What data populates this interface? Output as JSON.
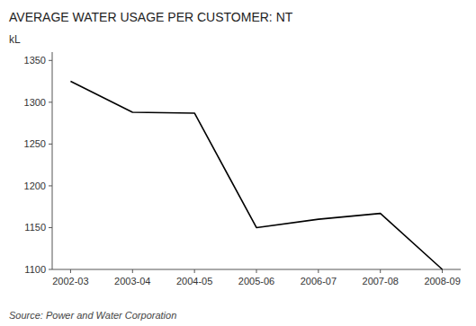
{
  "chart_data": {
    "type": "line",
    "title": "AVERAGE WATER USAGE PER CUSTOMER: NT",
    "ylabel": "kL",
    "source": "Source: Power and Water Corporation",
    "categories": [
      "2002-03",
      "2003-04",
      "2004-05",
      "2005-06",
      "2006-07",
      "2007-08",
      "2008-09"
    ],
    "values": [
      1325,
      1288,
      1287,
      1150,
      1160,
      1167,
      1100
    ],
    "color": "#000000",
    "ylim": [
      1100,
      1360
    ],
    "yticks": [
      1100,
      1150,
      1200,
      1250,
      1300,
      1350
    ],
    "grid": false
  }
}
